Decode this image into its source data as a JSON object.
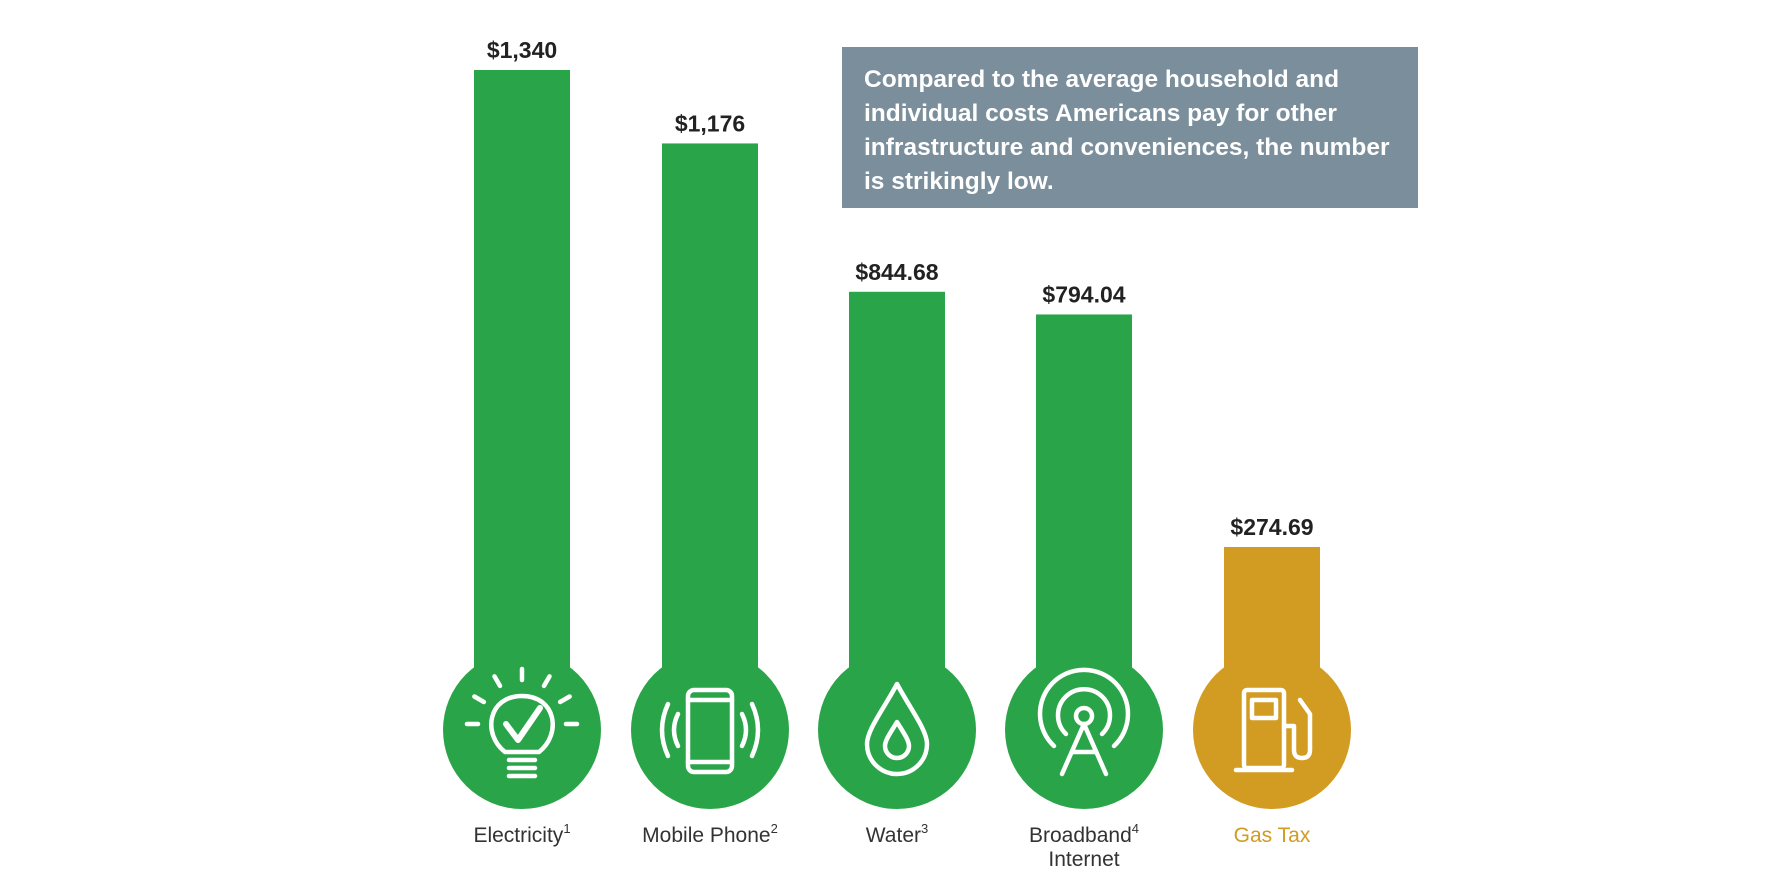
{
  "callout": {
    "text": "Compared to the average household and individual costs Americans pay for other infrastructure and conveniences, the number is strikingly low."
  },
  "colors": {
    "bar": "#2aa448",
    "highlight": "#d29b21",
    "label": "#333333",
    "callout_bg": "#7b8e9b"
  },
  "chart_data": {
    "type": "bar",
    "categories": [
      "Electricity",
      "Mobile Phone",
      "Water",
      "Broadband Internet",
      "Gas Tax"
    ],
    "values": [
      1340,
      1176,
      844.68,
      794.04,
      274.69
    ],
    "value_labels": [
      "$1,340",
      "$1,176",
      "$844.68",
      "$794.04",
      "$274.69"
    ],
    "category_labels": [
      {
        "lines": [
          "Electricity"
        ],
        "sup": "1"
      },
      {
        "lines": [
          "Mobile Phone"
        ],
        "sup": "2"
      },
      {
        "lines": [
          "Water"
        ],
        "sup": "3"
      },
      {
        "lines": [
          "Broadband",
          "Internet"
        ],
        "sup": "4"
      },
      {
        "lines": [
          "Gas Tax"
        ],
        "sup": ""
      }
    ],
    "icons": [
      "lightbulb-check-icon",
      "mobile-phone-icon",
      "water-drop-icon",
      "broadband-antenna-icon",
      "gas-pump-icon"
    ],
    "highlight_index": 4,
    "title": "",
    "xlabel": "",
    "ylabel": "",
    "ylim": [
      0,
      1340
    ],
    "grid": false,
    "legend": "none"
  }
}
